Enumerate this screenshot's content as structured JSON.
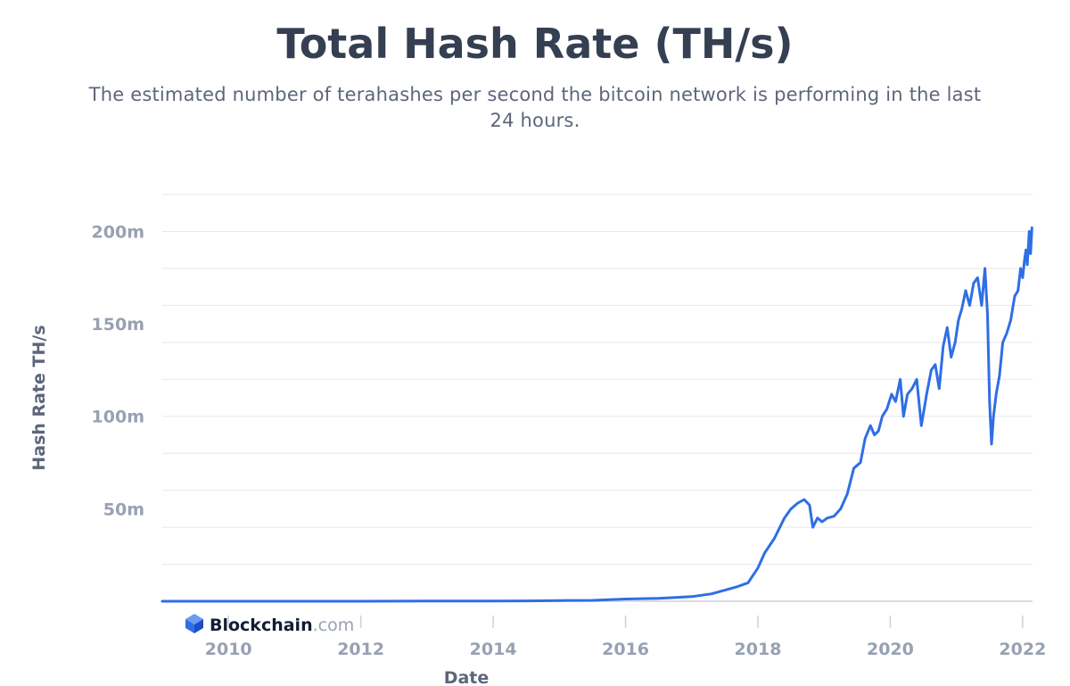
{
  "header": {
    "title": "Total Hash Rate (TH/s)",
    "subtitle": "The estimated number of terahashes per second the bitcoin network is performing in the last 24 hours."
  },
  "brand": {
    "name": "Blockchain",
    "suffix": ".com",
    "icon": "blockchain-cube-icon"
  },
  "colors": {
    "line": "#2f6ee5",
    "grid": "#e6e8ee",
    "axis": "#cdd2db",
    "tick_text": "#98a1b2",
    "title_text": "#353f52"
  },
  "chart_data": {
    "type": "line",
    "title": "Total Hash Rate (TH/s)",
    "subtitle": "The estimated number of terahashes per second the bitcoin network is performing in the last 24 hours.",
    "xlabel": "Date",
    "ylabel": "Hash Rate TH/s",
    "y_unit": "TH/s",
    "xlim": [
      2009.0,
      2022.15
    ],
    "ylim": [
      0,
      220000000
    ],
    "x_ticks": [
      2010,
      2012,
      2014,
      2016,
      2018,
      2020,
      2022
    ],
    "x_tick_labels": [
      "2010",
      "2012",
      "2014",
      "2016",
      "2018",
      "2020",
      "2022"
    ],
    "y_ticks": [
      50000000,
      100000000,
      150000000,
      200000000
    ],
    "y_tick_labels": [
      "50m",
      "100m",
      "150m",
      "200m"
    ],
    "grid": true,
    "series": [
      {
        "name": "",
        "x": [
          2009.0,
          2010.0,
          2011.0,
          2012.0,
          2013.0,
          2014.0,
          2014.5,
          2015.0,
          2015.5,
          2016.0,
          2016.5,
          2017.0,
          2017.3,
          2017.5,
          2017.7,
          2017.85,
          2018.0,
          2018.1,
          2018.25,
          2018.4,
          2018.5,
          2018.6,
          2018.7,
          2018.78,
          2018.83,
          2018.9,
          2018.97,
          2019.05,
          2019.15,
          2019.25,
          2019.35,
          2019.45,
          2019.55,
          2019.62,
          2019.7,
          2019.76,
          2019.82,
          2019.88,
          2019.95,
          2020.02,
          2020.08,
          2020.15,
          2020.2,
          2020.26,
          2020.33,
          2020.4,
          2020.47,
          2020.55,
          2020.62,
          2020.68,
          2020.74,
          2020.8,
          2020.86,
          2020.92,
          2020.98,
          2021.03,
          2021.08,
          2021.14,
          2021.2,
          2021.26,
          2021.32,
          2021.38,
          2021.43,
          2021.47,
          2021.5,
          2021.53,
          2021.56,
          2021.6,
          2021.65,
          2021.7,
          2021.76,
          2021.82,
          2021.88,
          2021.93,
          2021.97,
          2022.0,
          2022.03,
          2022.05,
          2022.07,
          2022.1,
          2022.12,
          2022.14
        ],
        "values": [
          0,
          0,
          0,
          20000,
          80000,
          120000,
          200000,
          380000,
          500000,
          1200000,
          1600000,
          2500000,
          4000000,
          6000000,
          8000000,
          10000000,
          18000000,
          26000000,
          34000000,
          45000000,
          50000000,
          53000000,
          55000000,
          52000000,
          40000000,
          45000000,
          43000000,
          45000000,
          46000000,
          50000000,
          58000000,
          72000000,
          75000000,
          88000000,
          95000000,
          90000000,
          92000000,
          100000000,
          104000000,
          112000000,
          108000000,
          120000000,
          100000000,
          112000000,
          115000000,
          120000000,
          95000000,
          112000000,
          125000000,
          128000000,
          115000000,
          138000000,
          148000000,
          132000000,
          140000000,
          152000000,
          158000000,
          168000000,
          160000000,
          172000000,
          175000000,
          160000000,
          180000000,
          155000000,
          108000000,
          85000000,
          100000000,
          112000000,
          122000000,
          140000000,
          145000000,
          152000000,
          165000000,
          168000000,
          180000000,
          175000000,
          185000000,
          190000000,
          182000000,
          200000000,
          188000000,
          202000000
        ]
      }
    ]
  }
}
